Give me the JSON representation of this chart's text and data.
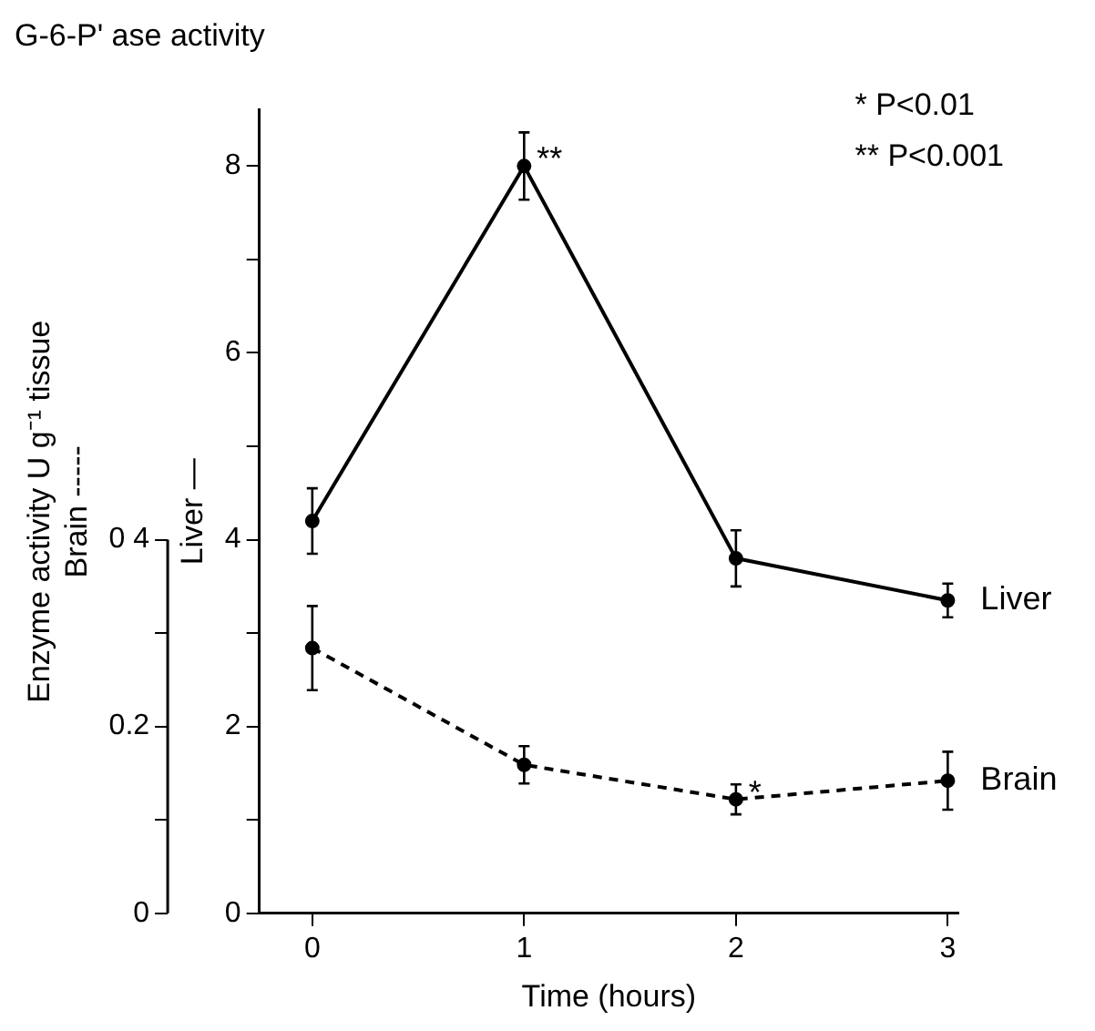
{
  "chart_data": {
    "type": "line",
    "title": "G-6-P' ase activity",
    "xlabel": "Time (hours)",
    "ylabel": "Liver —",
    "y2label": "Enzyme activity U g⁻¹ tissue\nBrain -----",
    "x": [
      0,
      1,
      2,
      3
    ],
    "series": [
      {
        "name": "Liver",
        "color": "#000000",
        "values": [
          4.2,
          8.0,
          3.8,
          3.35
        ],
        "errors": [
          0.35,
          0.36,
          0.3,
          0.18
        ],
        "line_style": "solid"
      },
      {
        "name": "Brain",
        "color": "#000000",
        "axis": "y2",
        "values": [
          0.284,
          0.159,
          0.122,
          0.142
        ],
        "errors": [
          0.045,
          0.02,
          0.016,
          0.031
        ],
        "line_style": "dashed"
      }
    ],
    "xlim": [
      -0.25,
      3.05
    ],
    "xticks": [
      0,
      1,
      2,
      3
    ],
    "ylim": [
      0,
      8.6
    ],
    "yticks": [
      0,
      {
        "value": 1,
        "label": null
      },
      2,
      {
        "value": 3,
        "label": null
      },
      4,
      {
        "value": 5,
        "label": null
      },
      6,
      {
        "value": 7,
        "label": null
      },
      8
    ],
    "y2lim": [
      0,
      0.86
    ],
    "y2ticks": [
      0,
      {
        "value": 0.1,
        "label": null
      },
      {
        "value": 0.2,
        "label": "0.2"
      },
      {
        "value": 0.3,
        "label": null
      },
      {
        "value": 0.4,
        "label": "0 4"
      }
    ],
    "annotations": [
      {
        "text": "**",
        "x": 1,
        "y": 8.0
      },
      {
        "text": "*",
        "x": 2,
        "y": 1.22
      },
      "* P<0.01",
      "** P<0.001"
    ],
    "grid": false,
    "legend": false,
    "marker": "circle"
  }
}
